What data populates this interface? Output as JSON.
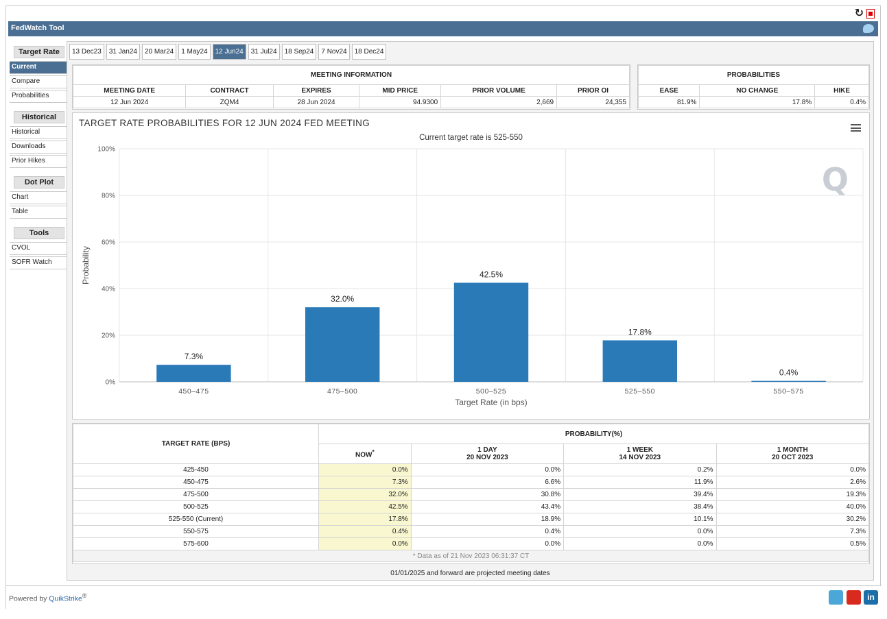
{
  "title": "FedWatch Tool",
  "sidebar": {
    "sections": [
      {
        "head": "Target Rate",
        "items": [
          "Current",
          "Compare",
          "Probabilities"
        ]
      },
      {
        "head": "Historical",
        "items": [
          "Historical",
          "Downloads",
          "Prior Hikes"
        ]
      },
      {
        "head": "Dot Plot",
        "items": [
          "Chart",
          "Table"
        ]
      },
      {
        "head": "Tools",
        "items": [
          "CVOL",
          "SOFR Watch"
        ]
      }
    ],
    "active": "Current"
  },
  "tabs": [
    "13 Dec23",
    "31 Jan24",
    "20 Mar24",
    "1 May24",
    "12 Jun24",
    "31 Jul24",
    "18 Sep24",
    "7 Nov24",
    "18 Dec24"
  ],
  "active_tab": "12 Jun24",
  "meeting": {
    "caption": "MEETING INFORMATION",
    "headers": [
      "MEETING DATE",
      "CONTRACT",
      "EXPIRES",
      "MID PRICE",
      "PRIOR VOLUME",
      "PRIOR OI"
    ],
    "values": [
      "12 Jun 2024",
      "ZQM4",
      "28 Jun 2024",
      "94.9300",
      "2,669",
      "24,355"
    ]
  },
  "probabilities": {
    "caption": "PROBABILITIES",
    "headers": [
      "EASE",
      "NO CHANGE",
      "HIKE"
    ],
    "values": [
      "81.9%",
      "17.8%",
      "0.4%"
    ]
  },
  "chart": {
    "title": "TARGET RATE PROBABILITIES FOR 12 JUN 2024 FED MEETING",
    "subtitle": "Current target rate is 525-550",
    "logo": "Q"
  },
  "chart_data": {
    "type": "bar",
    "title": "TARGET RATE PROBABILITIES FOR 12 JUN 2024 FED MEETING",
    "subtitle": "Current target rate is 525-550",
    "xlabel": "Target Rate (in bps)",
    "ylabel": "Probability",
    "categories": [
      "450-475",
      "475-500",
      "500-525",
      "525-550",
      "550-575"
    ],
    "values": [
      7.3,
      32.0,
      42.5,
      17.8,
      0.4
    ],
    "labels": [
      "7.3%",
      "32.0%",
      "42.5%",
      "17.8%",
      "0.4%"
    ],
    "ylim": [
      0,
      100
    ],
    "yticks": [
      "0%",
      "20%",
      "40%",
      "60%",
      "80%",
      "100%"
    ],
    "grid": true,
    "color": "#2a7ab8"
  },
  "grid": {
    "rate_header": "TARGET RATE (BPS)",
    "prob_header": "PROBABILITY(%)",
    "cols": [
      {
        "line1": "NOW",
        "line2": "",
        "note": "*"
      },
      {
        "line1": "1 DAY",
        "line2": "20 NOV 2023",
        "note": ""
      },
      {
        "line1": "1 WEEK",
        "line2": "14 NOV 2023",
        "note": ""
      },
      {
        "line1": "1 MONTH",
        "line2": "20 OCT 2023",
        "note": ""
      }
    ],
    "rows": [
      [
        "425-450",
        "0.0%",
        "0.0%",
        "0.2%",
        "0.0%"
      ],
      [
        "450-475",
        "7.3%",
        "6.6%",
        "11.9%",
        "2.6%"
      ],
      [
        "475-500",
        "32.0%",
        "30.8%",
        "39.4%",
        "19.3%"
      ],
      [
        "500-525",
        "42.5%",
        "43.4%",
        "38.4%",
        "40.0%"
      ],
      [
        "525-550 (Current)",
        "17.8%",
        "18.9%",
        "10.1%",
        "30.2%"
      ],
      [
        "550-575",
        "0.4%",
        "0.4%",
        "0.0%",
        "7.3%"
      ],
      [
        "575-600",
        "0.0%",
        "0.0%",
        "0.0%",
        "0.5%"
      ]
    ],
    "footnote": "* Data as of 21 Nov 2023 06:31:37 CT"
  },
  "projected_note": "01/01/2025 and forward are projected meeting dates",
  "footer": {
    "powered": "Powered by ",
    "brand": "QuikStrike",
    "reg": "®",
    "youtube": "You Tube",
    "linkedin": "in"
  }
}
